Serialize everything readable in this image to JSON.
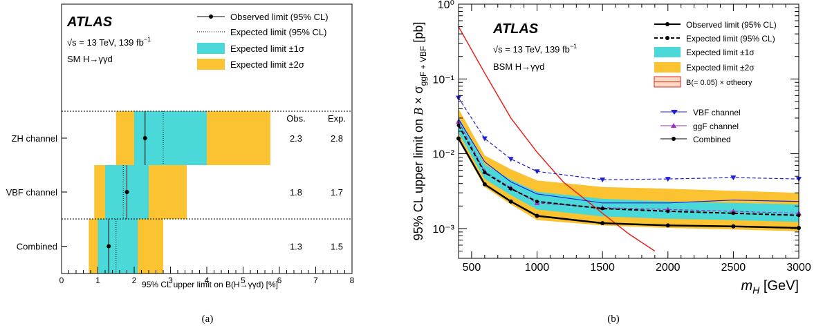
{
  "chart_data": [
    {
      "type": "bar",
      "panel_label": "(a)",
      "atlas_label": "ATLAS",
      "energy_label": "√s = 13 TeV, 139 fb",
      "energy_sup": "−1",
      "process_label": "SM H→γγd",
      "xlabel": "95% CL upper limit on B(H→γγd) [%]",
      "xlim": [
        0,
        8
      ],
      "xticks": [
        "0",
        "1",
        "2",
        "3",
        "4",
        "5",
        "6",
        "7",
        "8"
      ],
      "col_obs": "Obs.",
      "col_exp": "Exp.",
      "categories": [
        "ZH channel",
        "VBF channel",
        "Combined"
      ],
      "observed": [
        2.3,
        1.8,
        1.3
      ],
      "expected": [
        2.8,
        1.7,
        1.5
      ],
      "obs_text": [
        "2.3",
        "1.8",
        "1.3"
      ],
      "exp_text": [
        "2.8",
        "1.7",
        "1.5"
      ],
      "band_1sigma": [
        [
          2.0,
          4.0
        ],
        [
          1.2,
          2.4
        ],
        [
          1.0,
          2.1
        ]
      ],
      "band_2sigma": [
        [
          1.5,
          5.75
        ],
        [
          0.9,
          3.45
        ],
        [
          0.75,
          2.8
        ]
      ],
      "legend": {
        "observed": "Observed limit (95% CL)",
        "expected": "Expected limit (95% CL)",
        "sigma1": "Expected limit ±1σ",
        "sigma2": "Expected limit ±2σ"
      },
      "colors": {
        "sigma1": "#4bd8d8",
        "sigma2": "#fbc232"
      }
    },
    {
      "type": "line",
      "panel_label": "(b)",
      "atlas_label": "ATLAS",
      "energy_label": "√s = 13 TeV, 139 fb",
      "energy_sup": "−1",
      "process_label": "BSM H→γγd",
      "xlabel": "m_H [GeV]",
      "ylabel": "95% CL upper limit on B × σ ggF + VBF [pb]",
      "xlim": [
        400,
        3000
      ],
      "ylim": [
        0.0004,
        1
      ],
      "yscale": "log",
      "xticks": [
        500,
        1000,
        1500,
        2000,
        2500,
        3000
      ],
      "yticks": [
        "10⁰",
        "10⁻¹",
        "10⁻²",
        "10⁻³"
      ],
      "x": [
        400,
        600,
        800,
        1000,
        1500,
        2000,
        2500,
        3000
      ],
      "series": [
        {
          "name": "Observed limit (95% CL)",
          "values": [
            0.016,
            0.0039,
            0.0023,
            0.00148,
            0.00118,
            0.0011,
            0.00107,
            0.00102
          ]
        },
        {
          "name": "Expected limit (95% CL)",
          "values": [
            0.024,
            0.0056,
            0.0034,
            0.0023,
            0.00185,
            0.0017,
            0.0016,
            0.0015
          ]
        },
        {
          "name": "VBF channel",
          "values": [
            0.056,
            0.016,
            0.0085,
            0.0058,
            0.0045,
            0.0046,
            0.0048,
            0.0046
          ]
        },
        {
          "name": "ggF channel",
          "values": [
            0.027,
            0.0058,
            0.0035,
            0.0022,
            0.0019,
            0.0018,
            0.0017,
            0.0016
          ]
        },
        {
          "name": "Combined",
          "values": [
            0.029,
            0.0078,
            0.0042,
            0.0029,
            0.0022,
            0.0022,
            0.0024,
            0.0023
          ]
        },
        {
          "name": "B(=0.05) × σtheory",
          "x": [
            400,
            600,
            800,
            1000,
            1200,
            1500,
            1700,
            1900
          ],
          "values": [
            0.5,
            0.12,
            0.03,
            0.0105,
            0.0042,
            0.0016,
            0.00085,
            0.0005
          ]
        }
      ],
      "band_1sigma": {
        "low": [
          0.019,
          0.0046,
          0.0028,
          0.0018,
          0.00145,
          0.00135,
          0.0013,
          0.00122
        ],
        "high": [
          0.031,
          0.0072,
          0.0045,
          0.0031,
          0.0025,
          0.0023,
          0.0022,
          0.0021
        ]
      },
      "band_2sigma": {
        "low": [
          0.015,
          0.0036,
          0.0021,
          0.0013,
          0.0011,
          0.00102,
          0.00097,
          0.00092
        ],
        "high": [
          0.04,
          0.0095,
          0.0062,
          0.0044,
          0.0036,
          0.0034,
          0.0032,
          0.003
        ]
      },
      "legend": {
        "observed": "Observed limit (95% CL)",
        "expected": "Expected limit (95% CL)",
        "sigma1": "Expected limit ±1σ",
        "sigma2": "Expected limit ±2σ",
        "theory": "B(= 0.05) × σtheory",
        "vbf": "VBF channel",
        "ggf": "ggF channel",
        "combined": "Combined"
      },
      "colors": {
        "sigma1": "#4bd8d8",
        "sigma2": "#fbc232",
        "observed": "#000000",
        "vbf": "#1f1fd6",
        "ggf": "#9b2fc4",
        "theory": "#e8241c"
      }
    }
  ]
}
